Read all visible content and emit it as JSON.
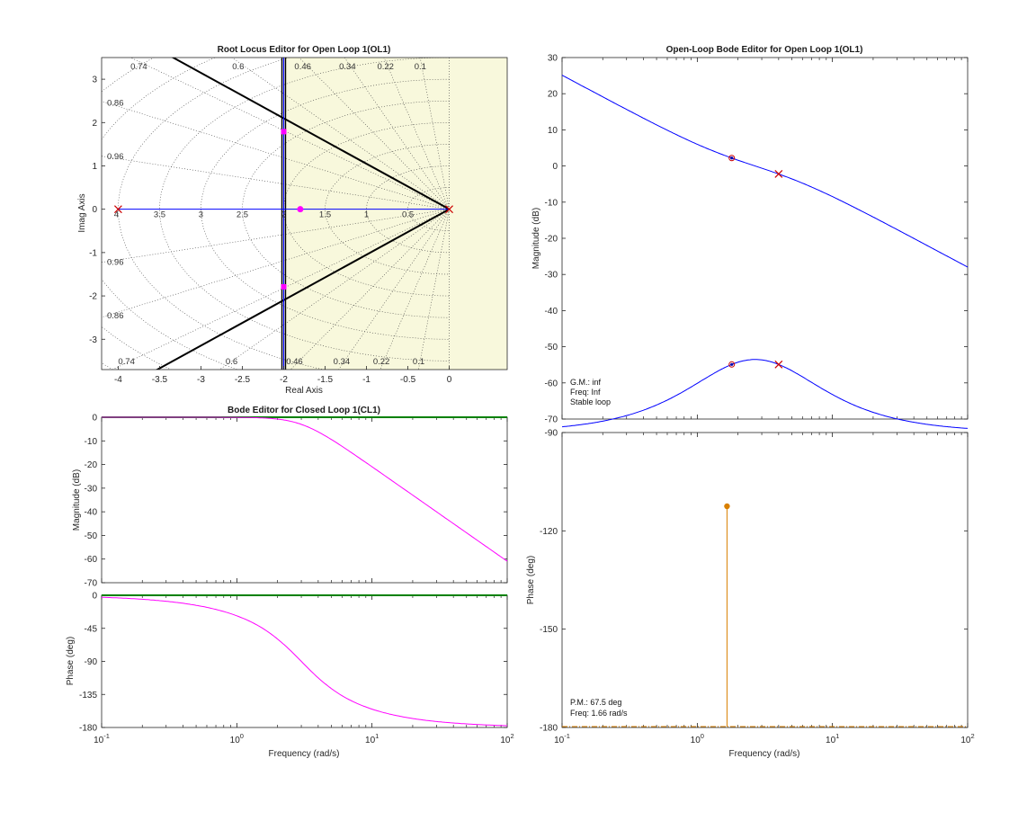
{
  "colors": {
    "background": "#ffffff",
    "rl_background": "#f8f8dc",
    "rl_left_background": "#ffffff",
    "locus": "#0000ff",
    "constraint": "#000000",
    "closed_loop_pole": "#ff00ff",
    "ol_pole": "#cc0000",
    "cl_response": "#ff00ff",
    "ol_response": "#0000ff",
    "margin_marker": "#d98000",
    "reference_line": "#008000",
    "grid": "#444444"
  },
  "chart_data": [
    {
      "id": "root_locus",
      "type": "scatter",
      "title": "Root Locus Editor for Open Loop 1(OL1)",
      "xlabel": "Real Axis",
      "ylabel": "Imag Axis",
      "xlim": [
        -4.2,
        0.7
      ],
      "ylim": [
        -3.7,
        3.5
      ],
      "xticks": [
        -4,
        -3.5,
        -3,
        -2.5,
        -2,
        -1.5,
        -1,
        -0.5,
        0
      ],
      "xtick_labels": [
        "-4",
        "-3.5",
        "-3",
        "-2.5",
        "-2",
        "-1.5",
        "-1",
        "-0.5",
        "0"
      ],
      "yticks": [
        3,
        2,
        1,
        0,
        -1,
        -2,
        -3
      ],
      "ytick_labels": [
        "3",
        "2",
        "1",
        "0",
        "-1",
        "-2",
        "-3"
      ],
      "grid": true,
      "damping_labels_top": [
        {
          "text": "0.74",
          "x": -3.75
        },
        {
          "text": "0.6",
          "x": -2.55
        },
        {
          "text": "0.46",
          "x": -1.77
        },
        {
          "text": "0.34",
          "x": -1.23
        },
        {
          "text": "0.22",
          "x": -0.77
        },
        {
          "text": "0.1",
          "x": -0.35
        }
      ],
      "damping_labels_bottom": [
        {
          "text": "0.74",
          "x": -3.9
        },
        {
          "text": "0.6",
          "x": -2.63
        },
        {
          "text": "0.46",
          "x": -1.87
        },
        {
          "text": "0.34",
          "x": -1.3
        },
        {
          "text": "0.22",
          "x": -0.82
        },
        {
          "text": "0.1",
          "x": -0.37
        }
      ],
      "damping_labels_left": [
        {
          "text": "0.86",
          "y": 2.45
        },
        {
          "text": "0.96",
          "y": 1.22
        },
        {
          "text": "0.96",
          "y": -1.22
        },
        {
          "text": "0.86",
          "y": -2.45
        }
      ],
      "frequency_labels": [
        {
          "text": "4",
          "x": -4
        },
        {
          "text": "3.5",
          "x": -3.5
        },
        {
          "text": "3",
          "x": -3
        },
        {
          "text": "2.5",
          "x": -2.5
        },
        {
          "text": "2",
          "x": -2
        },
        {
          "text": "1.5",
          "x": -1.5
        },
        {
          "text": "1",
          "x": -1
        },
        {
          "text": "0.5",
          "x": -0.5
        }
      ],
      "open_loop_poles": [
        [
          0,
          0
        ],
        [
          -4,
          0
        ]
      ],
      "closed_loop_poles": [
        [
          -2,
          1.79
        ],
        [
          -2,
          -1.79
        ]
      ],
      "compensator_zero": [
        -1.8,
        0
      ],
      "locus_branch_x": -2,
      "constraint_vertical_x": -2,
      "constraint_zeta": 0.69
    },
    {
      "id": "cl_magnitude",
      "type": "line",
      "title": "Bode Editor for Closed Loop 1(CL1)",
      "xlabel": "",
      "ylabel": "Magnitude (dB)",
      "xscale": "log",
      "xlim": [
        0.1,
        100
      ],
      "ylim": [
        -70,
        0
      ],
      "yticks": [
        0,
        -10,
        -20,
        -30,
        -40,
        -50,
        -60,
        -70
      ],
      "ytick_labels": [
        "0",
        "-10",
        "-20",
        "-30",
        "-40",
        "-50",
        "-60",
        "-70"
      ],
      "reference": 0
    },
    {
      "id": "cl_phase",
      "type": "line",
      "title": "",
      "xlabel": "Frequency (rad/s)",
      "ylabel": "Phase (deg)",
      "xscale": "log",
      "xlim": [
        0.1,
        100
      ],
      "ylim": [
        -180,
        0
      ],
      "yticks": [
        0,
        -45,
        -90,
        -135,
        -180
      ],
      "ytick_labels": [
        "0",
        "-45",
        "-90",
        "-135",
        "-180"
      ],
      "xticks": [
        0.1,
        1,
        10,
        100
      ],
      "reference": 0
    },
    {
      "id": "ol_magnitude",
      "type": "line",
      "title": "Open-Loop Bode Editor for Open Loop 1(OL1)",
      "xlabel": "",
      "ylabel": "Magnitude (dB)",
      "xscale": "log",
      "xlim": [
        0.1,
        100
      ],
      "ylim": [
        -70,
        30
      ],
      "yticks": [
        30,
        20,
        10,
        0,
        -10,
        -20,
        -30,
        -40,
        -50,
        -60,
        -70
      ],
      "ytick_labels": [
        "30",
        "20",
        "10",
        "0",
        "-10",
        "-20",
        "-30",
        "-40",
        "-50",
        "-60",
        "-70"
      ],
      "markers": {
        "zero_freq": 1.8,
        "pole_freq": 4
      },
      "annotation": [
        "G.M.: inf",
        "Freq: Inf",
        "Stable loop"
      ]
    },
    {
      "id": "ol_phase",
      "type": "line",
      "title": "",
      "xlabel": "Frequency (rad/s)",
      "ylabel": "Phase (deg)",
      "xscale": "log",
      "xlim": [
        0.1,
        100
      ],
      "ylim": [
        -180,
        -90
      ],
      "yticks": [
        -90,
        -120,
        -150,
        -180
      ],
      "ytick_labels": [
        "-90",
        "-120",
        "-150",
        "-180"
      ],
      "xticks": [
        0.1,
        1,
        10,
        100
      ],
      "phase_margin_deg": 67.5,
      "crossover_freq": 1.66,
      "annotation": [
        "P.M.: 67.5 deg",
        "Freq: 1.66 rad/s"
      ],
      "markers": {
        "zero_freq": 1.8,
        "pole_freq": 4
      }
    }
  ],
  "log_tick_labels": {
    "base": "10",
    "exponents": [
      "-1",
      "0",
      "1",
      "2"
    ]
  },
  "model": {
    "pole_integrator": 0,
    "pole": 4,
    "zero": 1.8
  }
}
